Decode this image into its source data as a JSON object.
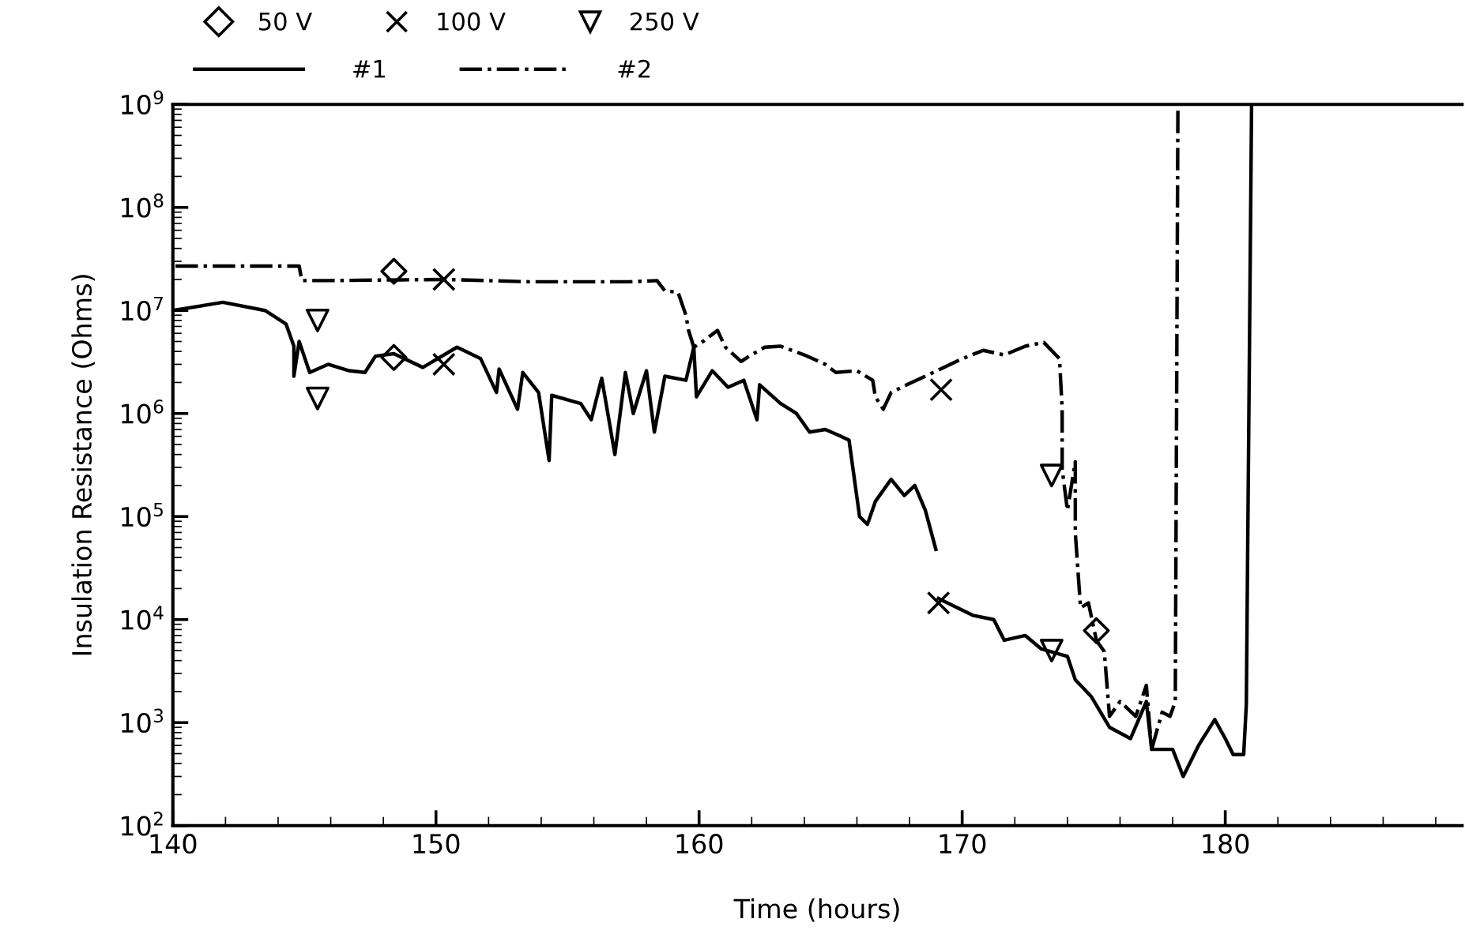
{
  "chart_data": {
    "type": "line",
    "xlabel": "Time (hours)",
    "ylabel": "Insulation Resistance (Ohms)",
    "log": "y",
    "grid": false,
    "legend": "top",
    "xlim": [
      140,
      189
    ],
    "xticks": [
      140,
      150,
      160,
      170,
      180
    ],
    "ylim": [
      100,
      1000000000
    ],
    "yticks": [
      {
        "value": 100,
        "label": "10$^{2}$"
      },
      {
        "value": 1000,
        "label": "10$^{3}$"
      },
      {
        "value": 10000,
        "label": "10$^{4}$"
      },
      {
        "value": 100000,
        "label": "10$^{5}$"
      },
      {
        "value": 1000000,
        "label": "10$^{6}$"
      },
      {
        "value": 10000000,
        "label": "10$^{7}$"
      },
      {
        "value": 100000000,
        "label": "10$^{8}$"
      },
      {
        "value": 1000000000,
        "label": "10$^{9}$"
      }
    ],
    "series": [
      {
        "name": "50 V",
        "type": "scatter",
        "marker": "diamond",
        "color": "#000000",
        "x": [
          148.4,
          148.4,
          175.1
        ],
        "values": [
          24000000,
          3500000,
          7800
        ]
      },
      {
        "name": "100 V",
        "type": "scatter",
        "marker": "cross",
        "color": "#000000",
        "x": [
          150.3,
          150.3,
          169.2,
          169.1
        ],
        "values": [
          20000000,
          3000000,
          1700000,
          14500
        ]
      },
      {
        "name": "250 V",
        "type": "scatter",
        "marker": "triangle",
        "color": "#000000",
        "x": [
          145.5,
          145.5,
          173.4,
          173.4
        ],
        "values": [
          8000000,
          1400000,
          250000,
          5000
        ]
      },
      {
        "name": "#1",
        "line_style": "solid",
        "color": "#000000",
        "x": [
          140,
          141.9,
          143.5,
          144.3,
          144.6,
          144.6,
          144.8,
          145.2,
          145.9,
          146.7,
          147.3,
          147.7,
          148.4,
          149.5,
          150.8,
          151.7,
          152.3,
          152.4,
          153.1,
          153.3,
          153.9,
          154.3,
          154.4,
          155.5,
          155.9,
          156.3,
          156.8,
          157.2,
          157.5,
          158.0,
          158.3,
          158.7,
          159.5,
          159.8,
          159.9,
          160.5,
          161.1,
          161.7,
          162.2,
          162.3,
          163.1,
          163.7,
          164.2,
          164.8,
          165.4,
          165.7,
          166.1,
          166.4,
          166.7,
          167.3,
          167.8,
          168.2,
          168.6,
          169.0,
          169.05,
          169.1,
          170.4,
          171.2,
          171.6,
          172.4,
          173.0,
          174.0,
          174.3,
          174.9,
          175.6,
          176.4,
          177.0,
          177.2,
          178.0,
          178.4,
          179.0,
          179.6,
          180.0,
          180.3,
          180.7,
          180.8,
          181.0
        ],
        "values": [
          10000000,
          12000000,
          10000000,
          7400000,
          4500000,
          2300000,
          5000000,
          2500000,
          3000000,
          2600000,
          2500000,
          3600000,
          3800000,
          2800000,
          4400000,
          3400000,
          1600000,
          2700000,
          1100000,
          2500000,
          1600000,
          350000,
          1500000,
          1250000,
          870000,
          2200000,
          400000,
          2500000,
          1000000,
          2600000,
          660000,
          2300000,
          2100000,
          4400000,
          1450000,
          2600000,
          1800000,
          2100000,
          870000,
          1900000,
          1250000,
          1000000,
          660000,
          700000,
          600000,
          550000,
          100000,
          84000,
          140000,
          230000,
          160000,
          200000,
          115000,
          48000,
          null,
          16000,
          11000,
          10000,
          6300,
          7000,
          5200,
          4400,
          2600,
          1800,
          900,
          700,
          1600,
          550,
          550,
          300,
          610,
          1070,
          700,
          490,
          490,
          1500,
          1000000000
        ]
      },
      {
        "name": "#2",
        "line_style": "dashdot",
        "color": "#000000",
        "x": [
          140.1,
          141.9,
          143.5,
          144.3,
          144.8,
          144.9,
          145.9,
          150.3,
          153.5,
          155.5,
          157.4,
          158.4,
          158.7,
          159.2,
          159.5,
          159.6,
          159.8,
          160.1,
          160.7,
          161.0,
          161.6,
          161.9,
          162.5,
          163.1,
          164.0,
          164.8,
          165.2,
          166.0,
          166.6,
          166.7,
          167.0,
          167.3,
          167.9,
          168.6,
          170.0,
          170.8,
          171.6,
          172.4,
          173.1,
          173.7,
          173.8,
          173.8,
          174.0,
          174.3,
          174.3,
          174.5,
          174.8,
          175.1,
          175.4,
          175.6,
          176.0,
          176.6,
          177.0,
          177.2,
          177.6,
          177.9,
          178.1,
          178.2
        ],
        "values": [
          27000000,
          27000000,
          27000000,
          27000000,
          27000000,
          19500000,
          19500000,
          20000000,
          19000000,
          19000000,
          19000000,
          19500000,
          15500000,
          15000000,
          9000000,
          6400000,
          4400000,
          4900000,
          6400000,
          4400000,
          3200000,
          3600000,
          4400000,
          4500000,
          3700000,
          3000000,
          2500000,
          2600000,
          2100000,
          1450000,
          1100000,
          1600000,
          1900000,
          2300000,
          3400000,
          4100000,
          3700000,
          4500000,
          4900000,
          3400000,
          1100000,
          290000,
          115000,
          340000,
          69000,
          13000,
          14500,
          6300,
          4900,
          1150,
          1600,
          1150,
          2300,
          550,
          1260,
          1150,
          1600,
          1000000000
        ]
      }
    ]
  }
}
